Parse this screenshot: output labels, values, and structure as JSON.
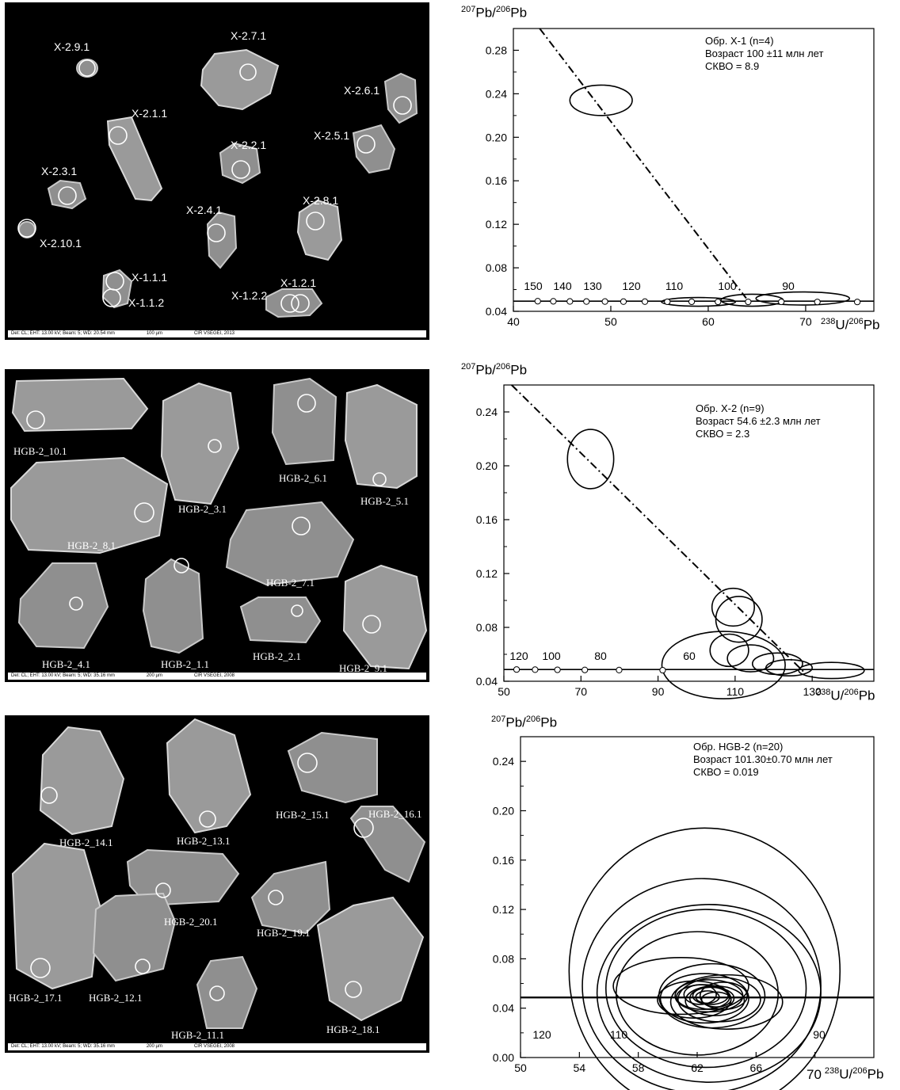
{
  "images": [
    {
      "labels": [
        "X-2.9.1",
        "X-2.7.1",
        "X-2.6.1",
        "X-2.1.1",
        "X-2.5.1",
        "X-2.2.1",
        "X-2.3.1",
        "X-2.8.1",
        "X-2.4.1",
        "X-2.10.1",
        "X-1.1.1",
        "X-1.1.2",
        "X-1.2.1",
        "X-1.2.2"
      ],
      "infobar": [
        "Det: CL; EHT: 13.00 kV; Beam: 5; WD: 20.54 mm",
        "100 µm",
        "CIR VSEGEI, 2013"
      ]
    },
    {
      "labels": [
        "HGB-2_10.1",
        "HGB-2_6.1",
        "HGB-2_5.1",
        "HGB-2_3.1",
        "HGB-2_8.1",
        "HGB-2_7.1",
        "HGB-2_4.1",
        "HGB-2_1.1",
        "HGB-2_2.1",
        "HGB-2_9.1"
      ],
      "infobar": [
        "Det: CL; EHT: 13.00 kV; Beam: 5; WD: 35.16 mm",
        "200 µm",
        "CIR VSEGEI, 2008"
      ]
    },
    {
      "labels": [
        "HGB-2_14.1",
        "HGB-2_13.1",
        "HGB-2_15.1",
        "HGB-2_16.1",
        "HGB-2_20.1",
        "HGB-2_19.1",
        "HGB-2_17.1",
        "HGB-2_12.1",
        "HGB-2_11.1",
        "HGB-2_18.1"
      ],
      "infobar": [
        "Det: CL; EHT: 13.00 kV; Beam: 5; WD: 35.16 mm",
        "200 µm",
        "CIR VSEGEI, 2008"
      ]
    }
  ],
  "chart_data": [
    {
      "type": "scatter",
      "title": "",
      "ylabel": {
        "sup1": "207",
        "base1": "Pb/",
        "sup2": "206",
        "base2": "Pb"
      },
      "xlabel": {
        "sup1": "238",
        "base1": "U/",
        "sup2": "206",
        "base2": "Pb"
      },
      "annotation": [
        "Обр. X-1 (n=4)",
        "Возраст 100 ±11 млн лет",
        "СКВО = 8.9"
      ],
      "xlim": [
        40,
        77
      ],
      "ylim": [
        0.04,
        0.3
      ],
      "xticks": [
        40,
        50,
        60,
        70
      ],
      "xticklabels": [
        "40",
        "50",
        "60",
        "70"
      ],
      "yticks": [
        0.04,
        0.08,
        0.12,
        0.16,
        0.2,
        0.24,
        0.28
      ],
      "yticklabels": [
        "0.04",
        "0.08",
        "0.12",
        "0.16",
        "0.20",
        "0.24",
        "0.28"
      ],
      "concordia": {
        "ages": [
          150,
          145,
          140,
          135,
          130,
          125,
          120,
          115,
          110,
          105,
          100,
          95,
          90,
          85
        ],
        "age_labels": [
          "150",
          "140",
          "130",
          "120",
          "110",
          "100",
          "90"
        ],
        "points": [
          [
            42.5,
            0.0493
          ],
          [
            44.1,
            0.0492
          ],
          [
            45.8,
            0.0491
          ],
          [
            47.5,
            0.049
          ],
          [
            49.4,
            0.049
          ],
          [
            51.3,
            0.0489
          ],
          [
            53.5,
            0.0489
          ],
          [
            55.8,
            0.0488
          ],
          [
            58.3,
            0.0488
          ],
          [
            61.0,
            0.0487
          ],
          [
            64.1,
            0.0487
          ],
          [
            67.5,
            0.0487
          ],
          [
            71.2,
            0.0486
          ],
          [
            75.3,
            0.0486
          ]
        ]
      },
      "discordia": {
        "x1": 42.7,
        "y1": 0.3,
        "x2": 63.9,
        "y2": 0.052
      },
      "ellipses": [
        {
          "x": 49.0,
          "y": 0.234,
          "rx": 3.2,
          "ry": 0.014
        },
        {
          "x": 59.0,
          "y": 0.0487,
          "rx": 3.8,
          "ry": 0.004
        },
        {
          "x": 64.5,
          "y": 0.0502,
          "rx": 3.2,
          "ry": 0.0055
        },
        {
          "x": 69.7,
          "y": 0.0518,
          "rx": 4.8,
          "ry": 0.006
        }
      ]
    },
    {
      "type": "scatter",
      "title": "",
      "ylabel": {
        "sup1": "207",
        "base1": "Pb/",
        "sup2": "206",
        "base2": "Pb"
      },
      "xlabel": {
        "sup1": "238",
        "base1": "U/",
        "sup2": "206",
        "base2": "Pb"
      },
      "annotation": [
        "Обр. X-2 (n=9)",
        "Возраст 54.6 ±2.3 млн лет",
        "СКВО = 2.3"
      ],
      "xlim": [
        50,
        146
      ],
      "ylim": [
        0.04,
        0.26
      ],
      "xticks": [
        50,
        70,
        90,
        110,
        130
      ],
      "xticklabels": [
        "50",
        "70",
        "90",
        "110",
        "130"
      ],
      "yticks": [
        0.04,
        0.08,
        0.12,
        0.16,
        0.2,
        0.24
      ],
      "yticklabels": [
        "0.04",
        "0.08",
        "0.12",
        "0.16",
        "0.20",
        "0.24"
      ],
      "concordia": {
        "ages": [
          120,
          110,
          100,
          90,
          80,
          70
        ],
        "age_labels": [
          "120",
          "100",
          "80",
          "60"
        ],
        "points": [
          [
            53.3,
            0.0487
          ],
          [
            58.1,
            0.0486
          ],
          [
            63.9,
            0.0485
          ],
          [
            71.0,
            0.0484
          ],
          [
            79.9,
            0.0483
          ],
          [
            91.2,
            0.0482
          ]
        ]
      },
      "discordia": {
        "x1": 52.0,
        "y1": 0.26,
        "x2": 127.8,
        "y2": 0.047
      },
      "ellipses": [
        {
          "x": 72.5,
          "y": 0.205,
          "rx": 6.0,
          "ry": 0.022
        },
        {
          "x": 107.0,
          "y": 0.052,
          "rx": 16.0,
          "ry": 0.025
        },
        {
          "x": 109.5,
          "y": 0.095,
          "rx": 5.5,
          "ry": 0.014
        },
        {
          "x": 111.0,
          "y": 0.086,
          "rx": 6.0,
          "ry": 0.017
        },
        {
          "x": 108.5,
          "y": 0.063,
          "rx": 5.0,
          "ry": 0.012
        },
        {
          "x": 114.0,
          "y": 0.057,
          "rx": 6.0,
          "ry": 0.01
        },
        {
          "x": 121.0,
          "y": 0.053,
          "rx": 6.5,
          "ry": 0.008
        },
        {
          "x": 124.0,
          "y": 0.05,
          "rx": 6.0,
          "ry": 0.006
        },
        {
          "x": 135.0,
          "y": 0.048,
          "rx": 8.5,
          "ry": 0.006
        }
      ]
    },
    {
      "type": "scatter",
      "title": "",
      "ylabel": {
        "sup1": "207",
        "base1": "Pb/",
        "sup2": "206",
        "base2": "Pb"
      },
      "xlabel": {
        "sup1": "238",
        "base1": "U/",
        "sup2": "206",
        "base2": "Pb"
      },
      "annotation": [
        "Обр. HGB-2 (n=20)",
        "Возраст 101.30±0.70 млн лет",
        "СКВО = 0.019"
      ],
      "xlim": [
        50,
        74
      ],
      "ylim": [
        0.0,
        0.26
      ],
      "xticks": [
        50,
        54,
        58,
        62,
        66,
        70
      ],
      "xticklabels": [
        "50",
        "54",
        "58",
        "62",
        "66",
        "70"
      ],
      "yticks": [
        0.0,
        0.04,
        0.08,
        0.12,
        0.16,
        0.2,
        0.24
      ],
      "yticklabels": [
        "0.00",
        "0.04",
        "0.08",
        "0.12",
        "0.16",
        "0.20",
        "0.24"
      ],
      "concordia": {
        "ages": [
          120,
          110,
          90
        ],
        "age_labels": [
          "120",
          "110",
          "90"
        ],
        "points": [
          [
            53.3,
            0.0487
          ],
          [
            58.1,
            0.0486
          ],
          [
            71.0,
            0.0484
          ]
        ]
      },
      "discordia": null,
      "ellipses": [
        {
          "x": 62.5,
          "y": 0.07,
          "rx": 9.2,
          "ry": 0.116
        },
        {
          "x": 62.3,
          "y": 0.058,
          "rx": 8.1,
          "ry": 0.087
        },
        {
          "x": 62.8,
          "y": 0.052,
          "rx": 7.6,
          "ry": 0.072
        },
        {
          "x": 62.6,
          "y": 0.056,
          "rx": 6.8,
          "ry": 0.064
        },
        {
          "x": 62.0,
          "y": 0.052,
          "rx": 5.5,
          "ry": 0.05
        },
        {
          "x": 60.9,
          "y": 0.058,
          "rx": 4.6,
          "ry": 0.023
        },
        {
          "x": 63.0,
          "y": 0.05,
          "rx": 3.6,
          "ry": 0.026
        },
        {
          "x": 62.5,
          "y": 0.048,
          "rx": 3.0,
          "ry": 0.02
        },
        {
          "x": 63.5,
          "y": 0.047,
          "rx": 2.8,
          "ry": 0.018
        },
        {
          "x": 62.8,
          "y": 0.05,
          "rx": 2.3,
          "ry": 0.013
        },
        {
          "x": 63.2,
          "y": 0.046,
          "rx": 2.0,
          "ry": 0.012
        },
        {
          "x": 62.4,
          "y": 0.049,
          "rx": 1.8,
          "ry": 0.01
        },
        {
          "x": 63.0,
          "y": 0.048,
          "rx": 1.5,
          "ry": 0.009
        },
        {
          "x": 62.9,
          "y": 0.05,
          "rx": 1.2,
          "ry": 0.007
        },
        {
          "x": 63.3,
          "y": 0.047,
          "rx": 1.0,
          "ry": 0.006
        },
        {
          "x": 62.7,
          "y": 0.049,
          "rx": 0.8,
          "ry": 0.005
        },
        {
          "x": 64.0,
          "y": 0.045,
          "rx": 3.8,
          "ry": 0.022
        },
        {
          "x": 61.8,
          "y": 0.047,
          "rx": 2.5,
          "ry": 0.015
        },
        {
          "x": 63.8,
          "y": 0.05,
          "rx": 1.6,
          "ry": 0.011
        },
        {
          "x": 62.2,
          "y": 0.051,
          "rx": 1.1,
          "ry": 0.008
        }
      ]
    }
  ]
}
